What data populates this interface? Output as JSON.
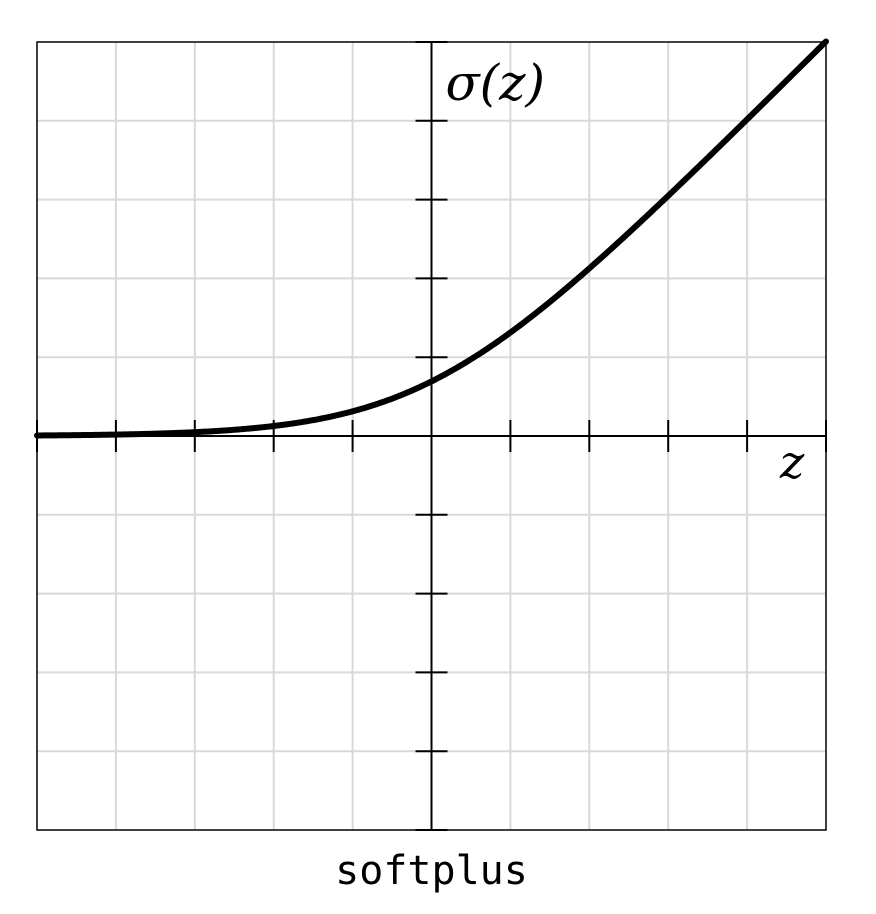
{
  "chart_data": {
    "type": "line",
    "title": "softplus",
    "xlabel": "z",
    "ylabel": "σ(z)",
    "xlim": [
      -5,
      5
    ],
    "ylim": [
      -5,
      5
    ],
    "xticks": [
      -5,
      -4,
      -3,
      -2,
      -1,
      0,
      1,
      2,
      3,
      4,
      5
    ],
    "yticks": [
      -5,
      -4,
      -3,
      -2,
      -1,
      1,
      2,
      3,
      4,
      5
    ],
    "grid": true,
    "series": [
      {
        "function": "softplus",
        "x": [
          -5,
          -4,
          -3,
          -2,
          -1,
          0,
          1,
          2,
          3,
          4,
          5
        ],
        "y": [
          0.007,
          0.018,
          0.049,
          0.127,
          0.313,
          0.693,
          1.313,
          2.127,
          3.049,
          4.018,
          5.007
        ],
        "color": "#000000"
      }
    ]
  }
}
